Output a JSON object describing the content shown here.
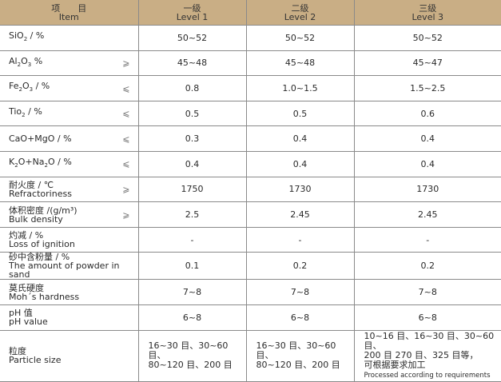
{
  "header": {
    "item_cn": "项　　目",
    "item_en": "Item",
    "levels": [
      {
        "cn": "一级",
        "en": "Level 1"
      },
      {
        "cn": "二级",
        "en": "Level 2"
      },
      {
        "cn": "三级",
        "en": "Level 3"
      }
    ]
  },
  "rows": [
    {
      "name": "SiO",
      "sub": "2",
      "suffix": " / %",
      "op": "",
      "values": [
        "50~52",
        "50~52",
        "50~52"
      ]
    },
    {
      "name": "Al",
      "sub": "2",
      "mid": "O",
      "sub2": "3",
      "suffix": " %",
      "op": "⩾",
      "values": [
        "45~48",
        "45~48",
        "45~47"
      ]
    },
    {
      "name": "Fe",
      "sub": "2",
      "mid": "O",
      "sub2": "3",
      "suffix": " / %",
      "op": "⩽",
      "values": [
        "0.8",
        "1.0~1.5",
        "1.5~2.5"
      ]
    },
    {
      "name": "Tio",
      "sub": "2",
      "suffix": " / %",
      "op": "⩽",
      "values": [
        "0.5",
        "0.5",
        "0.6"
      ]
    },
    {
      "name": "CaO+MgO / %",
      "op": "⩽",
      "values": [
        "0.3",
        "0.4",
        "0.4"
      ]
    },
    {
      "name": "K",
      "sub": "2",
      "mid": "O+Na",
      "sub2": "2",
      "suffix": "O / %",
      "op": "⩽",
      "values": [
        "0.4",
        "0.4",
        "0.4"
      ]
    },
    {
      "cn": "耐火度 / ℃",
      "en": "Refractoriness",
      "op": "⩾",
      "values": [
        "1750",
        "1730",
        "1730"
      ]
    },
    {
      "cn": "体积密度 /(g/m³)",
      "en": "Bulk density",
      "op": "⩾",
      "values": [
        "2.5",
        "2.45",
        "2.45"
      ]
    },
    {
      "cn": "灼减 / %",
      "en": "Loss of ignition",
      "op": "",
      "values": [
        "-",
        "-",
        "-"
      ]
    },
    {
      "cn": "砂中含粉量 / %",
      "en": "The amount of powder in sand",
      "op": "",
      "values": [
        "0.1",
        "0.2",
        "0.2"
      ]
    },
    {
      "cn": "莫氏硬度",
      "en": "Moh´s hardness",
      "op": "",
      "values": [
        "7~8",
        "7~8",
        "7~8"
      ]
    },
    {
      "cn": "pH 值",
      "en": "pH value",
      "op": "",
      "values": [
        "6~8",
        "6~8",
        "6~8"
      ]
    }
  ],
  "particle": {
    "cn": "粒度",
    "en": "Particle size",
    "v1": [
      "16~30 目、30~60 目、",
      "80~120 目、200 目"
    ],
    "v2": [
      "16~30 目、30~60 目、",
      "80~120 目、200 目"
    ],
    "v3": [
      "10~16 目、16~30 目、30~60 目、",
      "200 目 270 目、325 目等，",
      "可根据要求加工",
      "Processed according to requirements"
    ]
  }
}
